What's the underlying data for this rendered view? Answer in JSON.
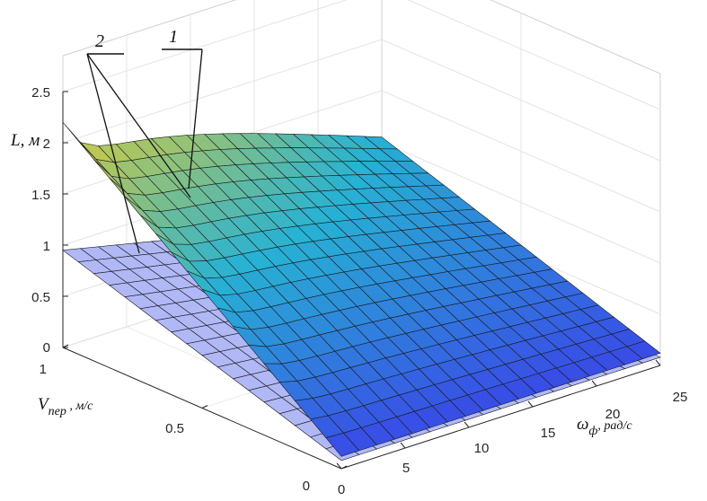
{
  "chart_data": {
    "type": "surface3d",
    "x_axis": {
      "label_main": "ω",
      "label_sub": "ф",
      "label_unit": ", рад/с",
      "ticks": [
        "0",
        "5",
        "10",
        "15",
        "20",
        "25"
      ],
      "range": [
        0,
        25
      ]
    },
    "y_axis": {
      "label_main": "V",
      "label_sub": "пер",
      "label_unit": " , м/с",
      "ticks": [
        "0",
        "0.5",
        "1"
      ],
      "range": [
        0,
        1
      ]
    },
    "z_axis": {
      "label": "L, м",
      "ticks": [
        "0",
        "0.5",
        "1",
        "1.5",
        "2",
        "2.5"
      ],
      "range": [
        0,
        2.5
      ]
    },
    "grid": true,
    "surfaces": [
      {
        "name": "1",
        "corner_values": {
          "w0_v1": 2.2,
          "w25_v1": 1.05,
          "w0_v0": 0.12,
          "w25_v0": 0.12
        }
      },
      {
        "name": "2",
        "corner_values": {
          "w0_v1": 0.95,
          "w25_v1": 0.25,
          "w0_v0": 0.08,
          "w25_v0": 0.08
        }
      }
    ],
    "callouts": [
      "1",
      "2"
    ]
  },
  "colors": {
    "surface2": "#a9b2f5",
    "surface1_low": "#3b3ee8",
    "surface1_mid": "#27b2d4",
    "surface1_high": "#ffd21c"
  }
}
